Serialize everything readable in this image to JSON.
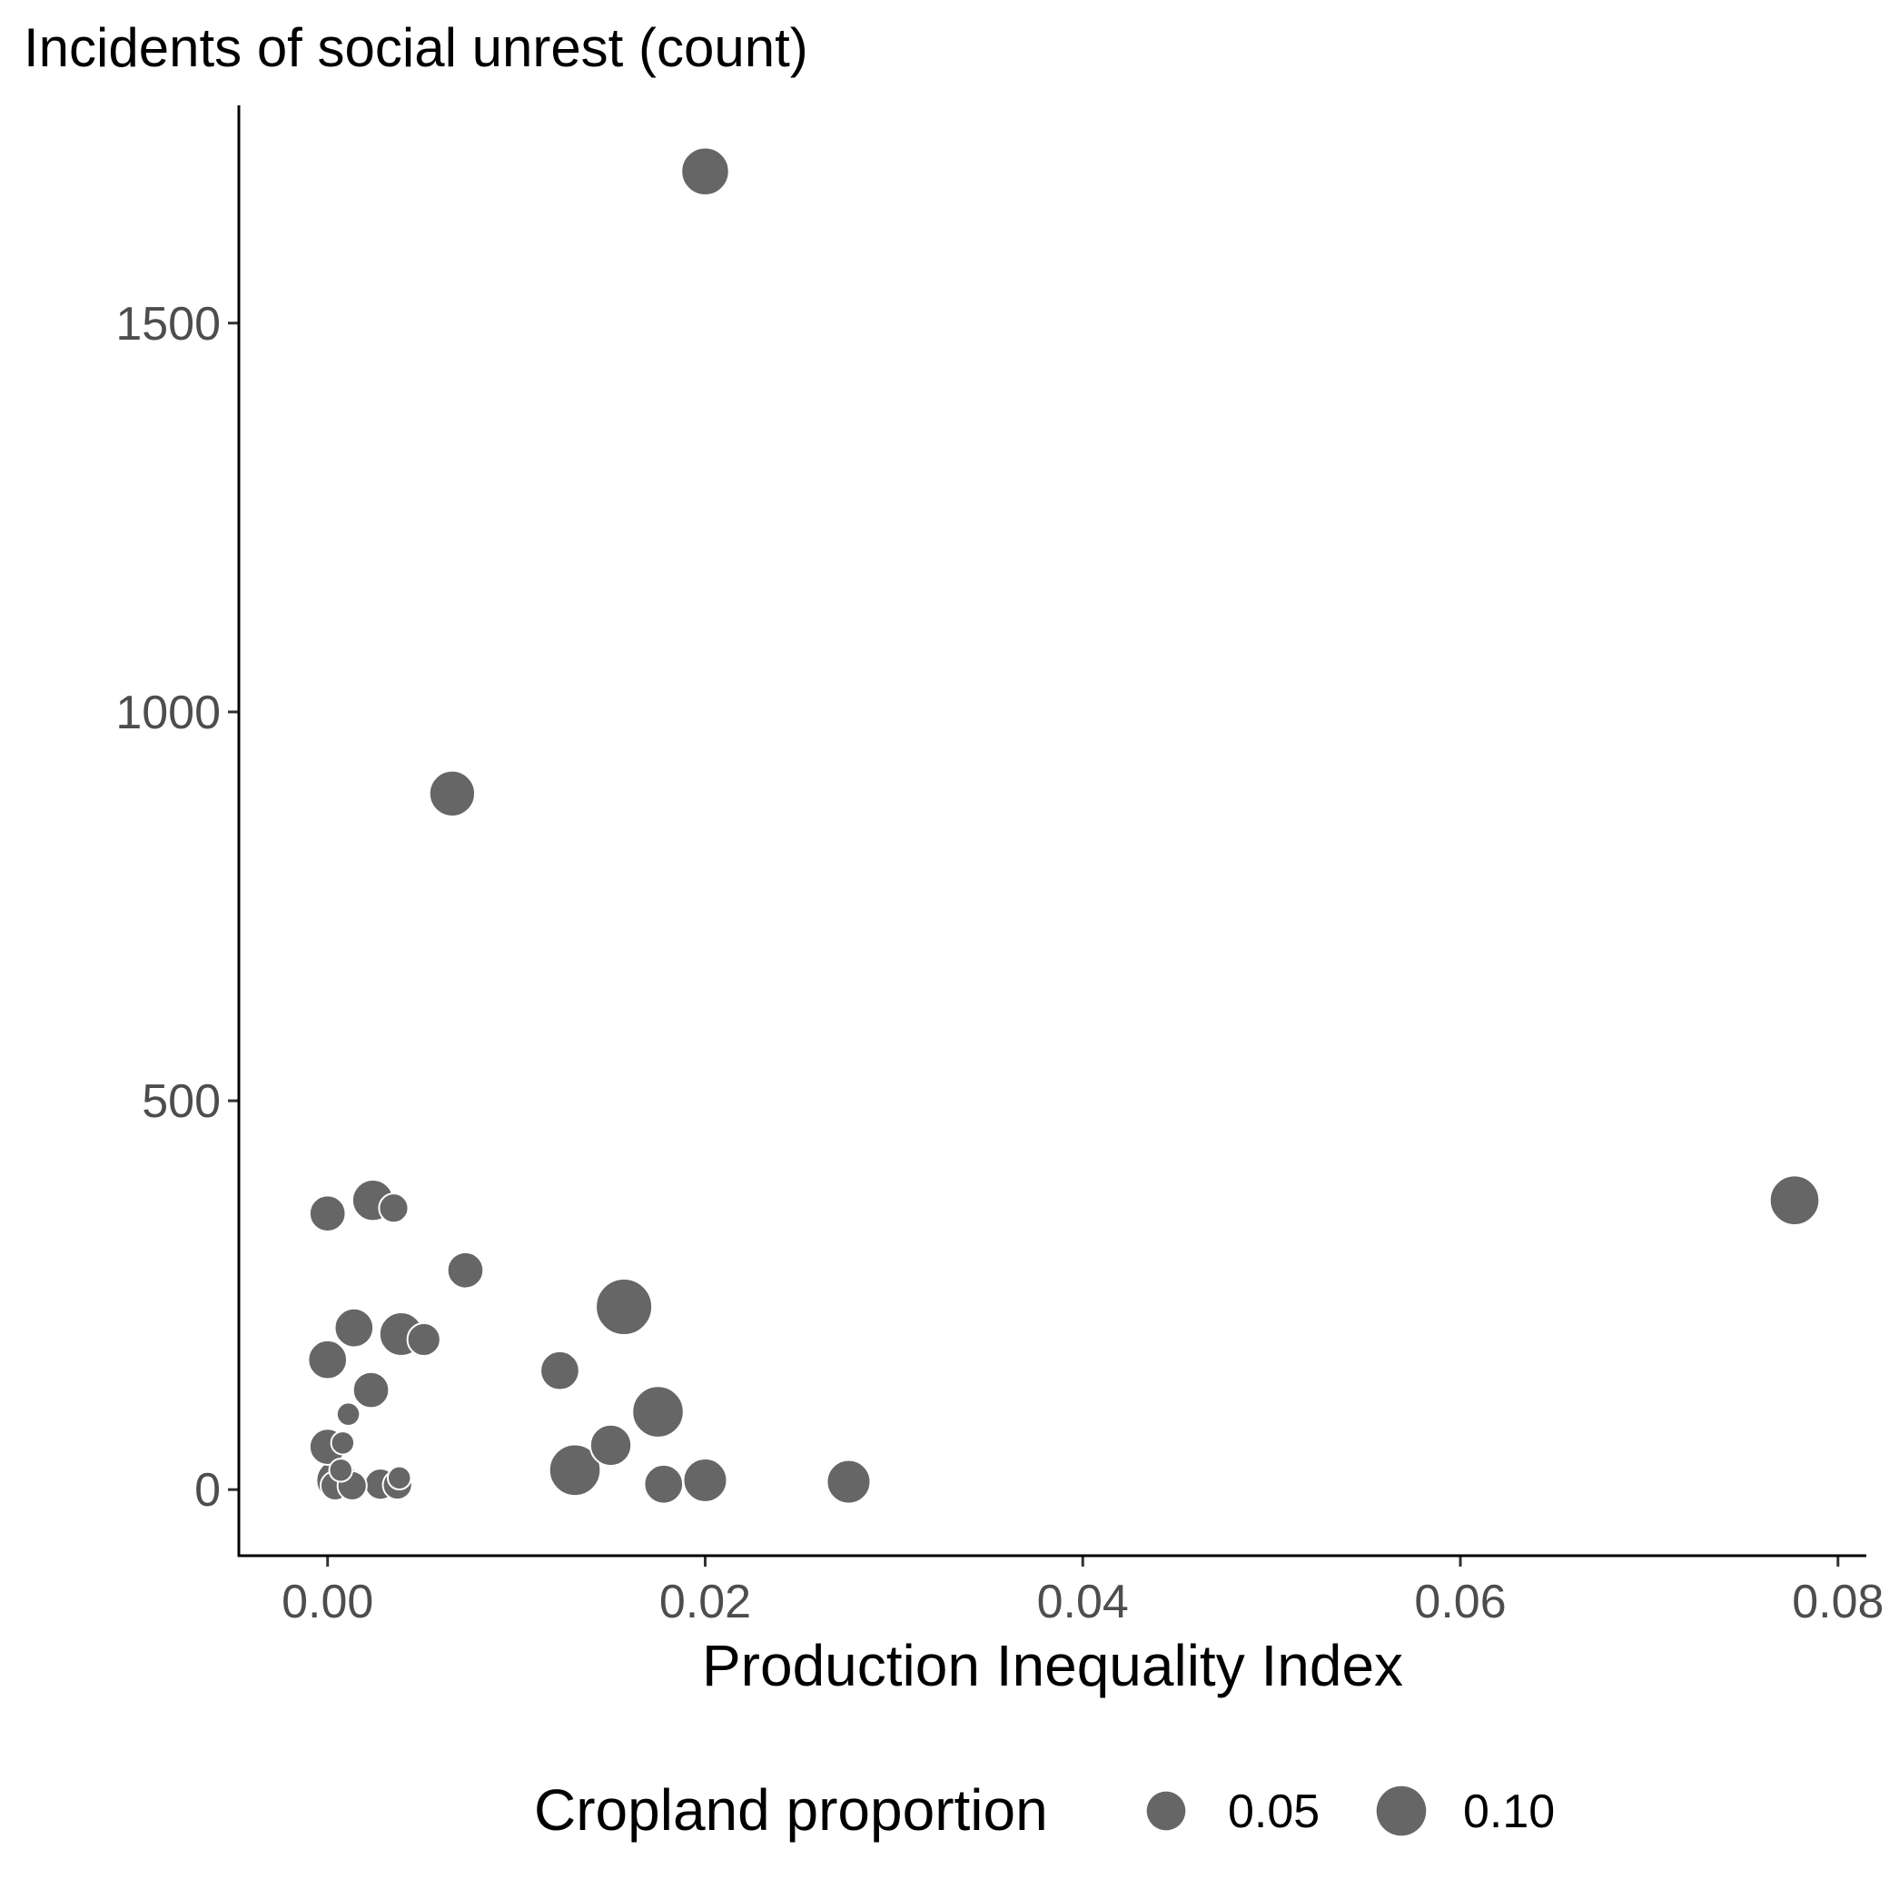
{
  "chart_data": {
    "type": "scatter",
    "title": "Incidents of social unrest (count)",
    "xlabel": "Production Inequality Index",
    "ylabel": "",
    "xlim": [
      -0.0047,
      0.0815
    ],
    "ylim": [
      -85,
      1780
    ],
    "x_ticks": [
      0.0,
      0.02,
      0.04,
      0.06,
      0.08
    ],
    "x_tick_labels": [
      "0.00",
      "0.02",
      "0.04",
      "0.06",
      "0.08"
    ],
    "y_ticks": [
      0,
      500,
      1000,
      1500
    ],
    "y_tick_labels": [
      "0",
      "500",
      "1000",
      "1500"
    ],
    "grid": false,
    "point_color": "#666666",
    "point_stroke": "#ffffff",
    "size_variable": "Cropland proportion",
    "legend": {
      "title": "Cropland proportion",
      "position": "bottom",
      "entries": [
        {
          "label": "0.05",
          "value": 0.05
        },
        {
          "label": "0.10",
          "value": 0.1
        }
      ]
    },
    "points": [
      {
        "x": 0.02,
        "y": 1695,
        "size": 0.09
      },
      {
        "x": 0.0066,
        "y": 895,
        "size": 0.08
      },
      {
        "x": 0.0777,
        "y": 372,
        "size": 0.1
      },
      {
        "x": 0.0,
        "y": 355,
        "size": 0.04
      },
      {
        "x": 0.0024,
        "y": 372,
        "size": 0.06
      },
      {
        "x": 0.0035,
        "y": 362,
        "size": 0.02
      },
      {
        "x": 0.0073,
        "y": 282,
        "size": 0.04
      },
      {
        "x": 0.0157,
        "y": 235,
        "size": 0.14
      },
      {
        "x": 0.0014,
        "y": 208,
        "size": 0.05
      },
      {
        "x": 0.0039,
        "y": 200,
        "size": 0.07
      },
      {
        "x": 0.0051,
        "y": 193,
        "size": 0.03
      },
      {
        "x": 0.0,
        "y": 167,
        "size": 0.05
      },
      {
        "x": 0.0123,
        "y": 153,
        "size": 0.05
      },
      {
        "x": 0.0023,
        "y": 128,
        "size": 0.04
      },
      {
        "x": 0.0175,
        "y": 100,
        "size": 0.11
      },
      {
        "x": 0.0011,
        "y": 97,
        "size": 0.008
      },
      {
        "x": 0.015,
        "y": 57,
        "size": 0.06
      },
      {
        "x": 0.0,
        "y": 55,
        "size": 0.04
      },
      {
        "x": 0.0008,
        "y": 60,
        "size": 0.008
      },
      {
        "x": 0.0131,
        "y": 25,
        "size": 0.11
      },
      {
        "x": 0.02,
        "y": 12,
        "size": 0.07
      },
      {
        "x": 0.0276,
        "y": 10,
        "size": 0.07
      },
      {
        "x": 0.0178,
        "y": 7,
        "size": 0.05
      },
      {
        "x": 0.0005,
        "y": 12,
        "size": 0.06
      },
      {
        "x": 0.0007,
        "y": 25,
        "size": 0.008
      },
      {
        "x": 0.0004,
        "y": 5,
        "size": 0.02
      },
      {
        "x": 0.0013,
        "y": 5,
        "size": 0.02
      },
      {
        "x": 0.0028,
        "y": 7,
        "size": 0.025
      },
      {
        "x": 0.0037,
        "y": 6,
        "size": 0.02
      },
      {
        "x": 0.0038,
        "y": 15,
        "size": 0.008
      }
    ]
  }
}
